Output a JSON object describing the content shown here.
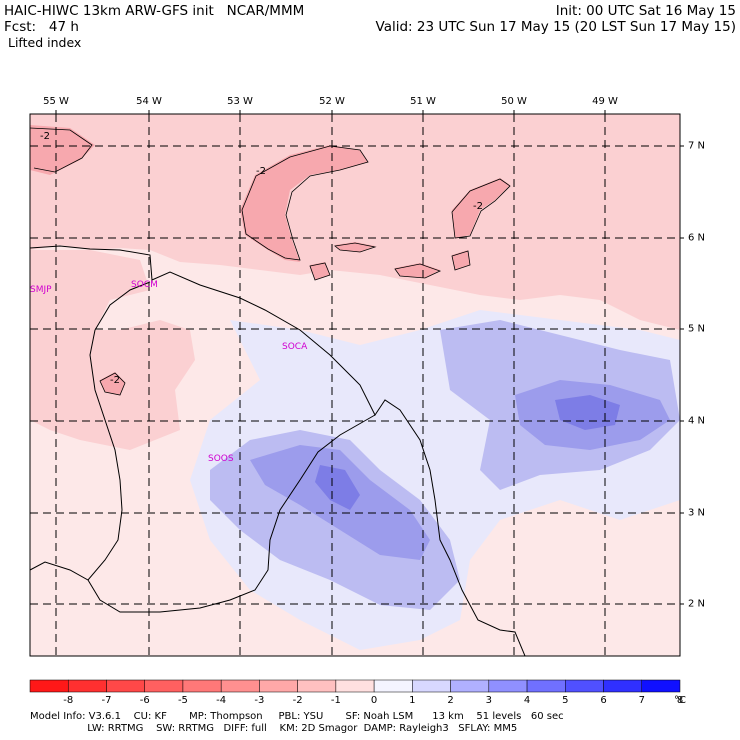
{
  "header": {
    "left_line1": "HAIC-HIWC 13km ARW-GFS init   NCAR/MMM",
    "left_line2": "Fcst:   47 h",
    "left_line3": "Lifted index",
    "right_line1": "Init: 00 UTC Sat 16 May 15",
    "right_line2": "Valid: 23 UTC Sun 17 May 15 (20 LST Sun 17 May 15)"
  },
  "map": {
    "lon_labels": [
      "55 W",
      "54 W",
      "53 W",
      "52 W",
      "51 W",
      "50 W",
      "49 W"
    ],
    "lat_labels": [
      "7 N",
      "6 N",
      "5 N",
      "4 N",
      "3 N",
      "2 N"
    ],
    "stations": [
      "SMJP",
      "SOCM",
      "SOCA",
      "SOOS"
    ],
    "contour_label": "-2",
    "colors": {
      "neg2": "#f7a8ae",
      "neg1": "#fbd0d2",
      "zero": "#fde8e8",
      "pos1": "#e8e8fb",
      "pos2": "#bcbcf2",
      "pos3": "#9c9cec",
      "pos4": "#7d7de6"
    }
  },
  "colorbar": {
    "ticks": [
      "-8",
      "-7",
      "-6",
      "-5",
      "-4",
      "-3",
      "-2",
      "-1",
      "0",
      "1",
      "2",
      "3",
      "4",
      "5",
      "6",
      "7",
      "8"
    ],
    "unit": "°C",
    "colors": [
      "#ff1818",
      "#ff3030",
      "#ff4848",
      "#ff6060",
      "#ff7878",
      "#ff9090",
      "#ffa8a8",
      "#ffc0c0",
      "#ffe0e0",
      "#f4f4ff",
      "#d8d8ff",
      "#b0b0ff",
      "#9090ff",
      "#7070ff",
      "#5050ff",
      "#3030ff",
      "#1010ff"
    ]
  },
  "footer": {
    "line1": "Model Info: V3.6.1    CU: KF       MP: Thompson     PBL: YSU       SF: Noah LSM      13 km    51 levels   60 sec",
    "line2": "                  LW: RRTMG    SW: RRTMG   DIFF: full    KM: 2D Smagor  DAMP: Rayleigh3   SFLAY: MM5"
  }
}
